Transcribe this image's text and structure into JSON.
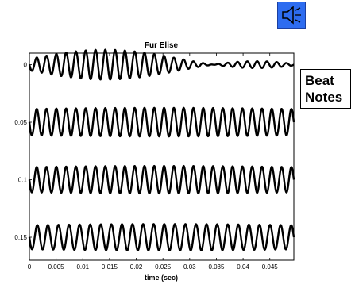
{
  "speaker_button": {
    "icon": "speaker-icon",
    "color": "#2d6cf0"
  },
  "side_label": {
    "line1": "Beat",
    "line2": "Notes"
  },
  "chart_data": {
    "type": "line",
    "title": "Fur Elise",
    "xlabel": "time (sec)",
    "ylabel": "",
    "xlim": [
      0,
      0.0495
    ],
    "ylim": [
      0.17,
      -0.01
    ],
    "x_ticks": [
      0,
      0.005,
      0.01,
      0.015,
      0.02,
      0.025,
      0.03,
      0.035,
      0.04,
      0.045
    ],
    "x_tick_labels": [
      "0",
      "0.005",
      "0.01",
      "0.015",
      "0.02",
      "0.025",
      "0.03",
      "0.035",
      "0.04",
      "0.045"
    ],
    "y_ticks": [
      0,
      0.05,
      0.1,
      0.15
    ],
    "y_tick_labels": [
      "0",
      "0.05",
      "0.1",
      "0.15"
    ],
    "grid": false,
    "line_color": "#000000",
    "series": [
      {
        "offset": 0,
        "cycles": 27,
        "amp_base": 0.005,
        "amp_var": 0.008,
        "env_cycles": 1.75
      },
      {
        "offset": 0.05,
        "cycles": 27,
        "amp_base": 0.0115,
        "amp_var": 0.001,
        "env_cycles": 1.0
      },
      {
        "offset": 0.1,
        "cycles": 27,
        "amp_base": 0.011,
        "amp_var": 0.001,
        "env_cycles": 1.0
      },
      {
        "offset": 0.15,
        "cycles": 25,
        "amp_base": 0.0105,
        "amp_var": 0.001,
        "env_cycles": 1.0
      }
    ]
  }
}
